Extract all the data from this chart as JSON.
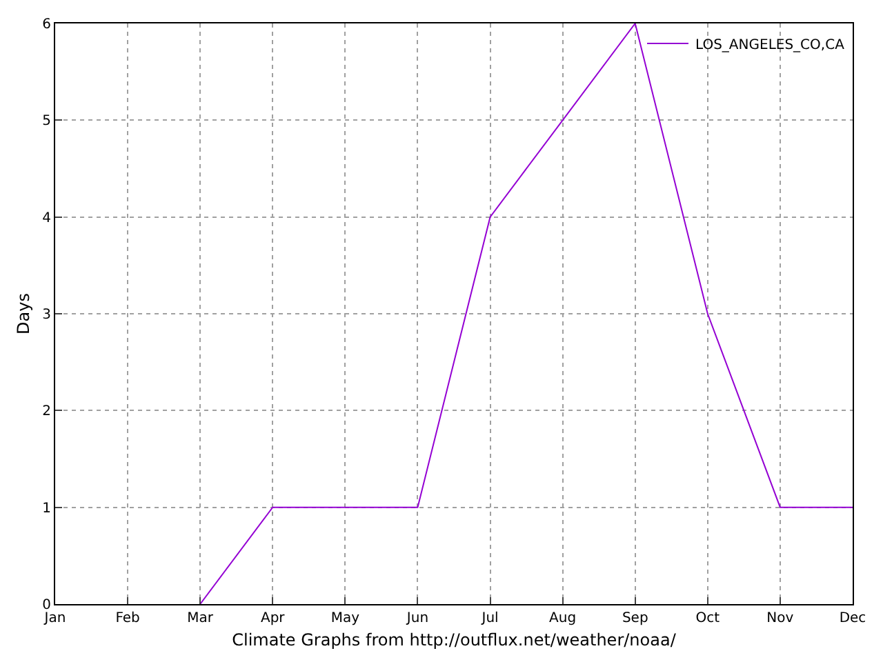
{
  "chart_data": {
    "type": "line",
    "xlabel": "Climate Graphs from http://outflux.net/weather/noaa/",
    "ylabel": "Days",
    "categories": [
      "Jan",
      "Feb",
      "Mar",
      "Apr",
      "May",
      "Jun",
      "Jul",
      "Aug",
      "Sep",
      "Oct",
      "Nov",
      "Dec"
    ],
    "series": [
      {
        "name": "LOS_ANGELES_CO,CA",
        "color": "#9400d3",
        "values": [
          null,
          null,
          0,
          1,
          1,
          1,
          4,
          5,
          6,
          3,
          1,
          1
        ]
      }
    ],
    "ylim": [
      0,
      6
    ],
    "yticks": [
      0,
      1,
      2,
      3,
      4,
      5,
      6
    ],
    "grid": true,
    "legend": "top right",
    "marker": "none",
    "line_style": "solid"
  }
}
